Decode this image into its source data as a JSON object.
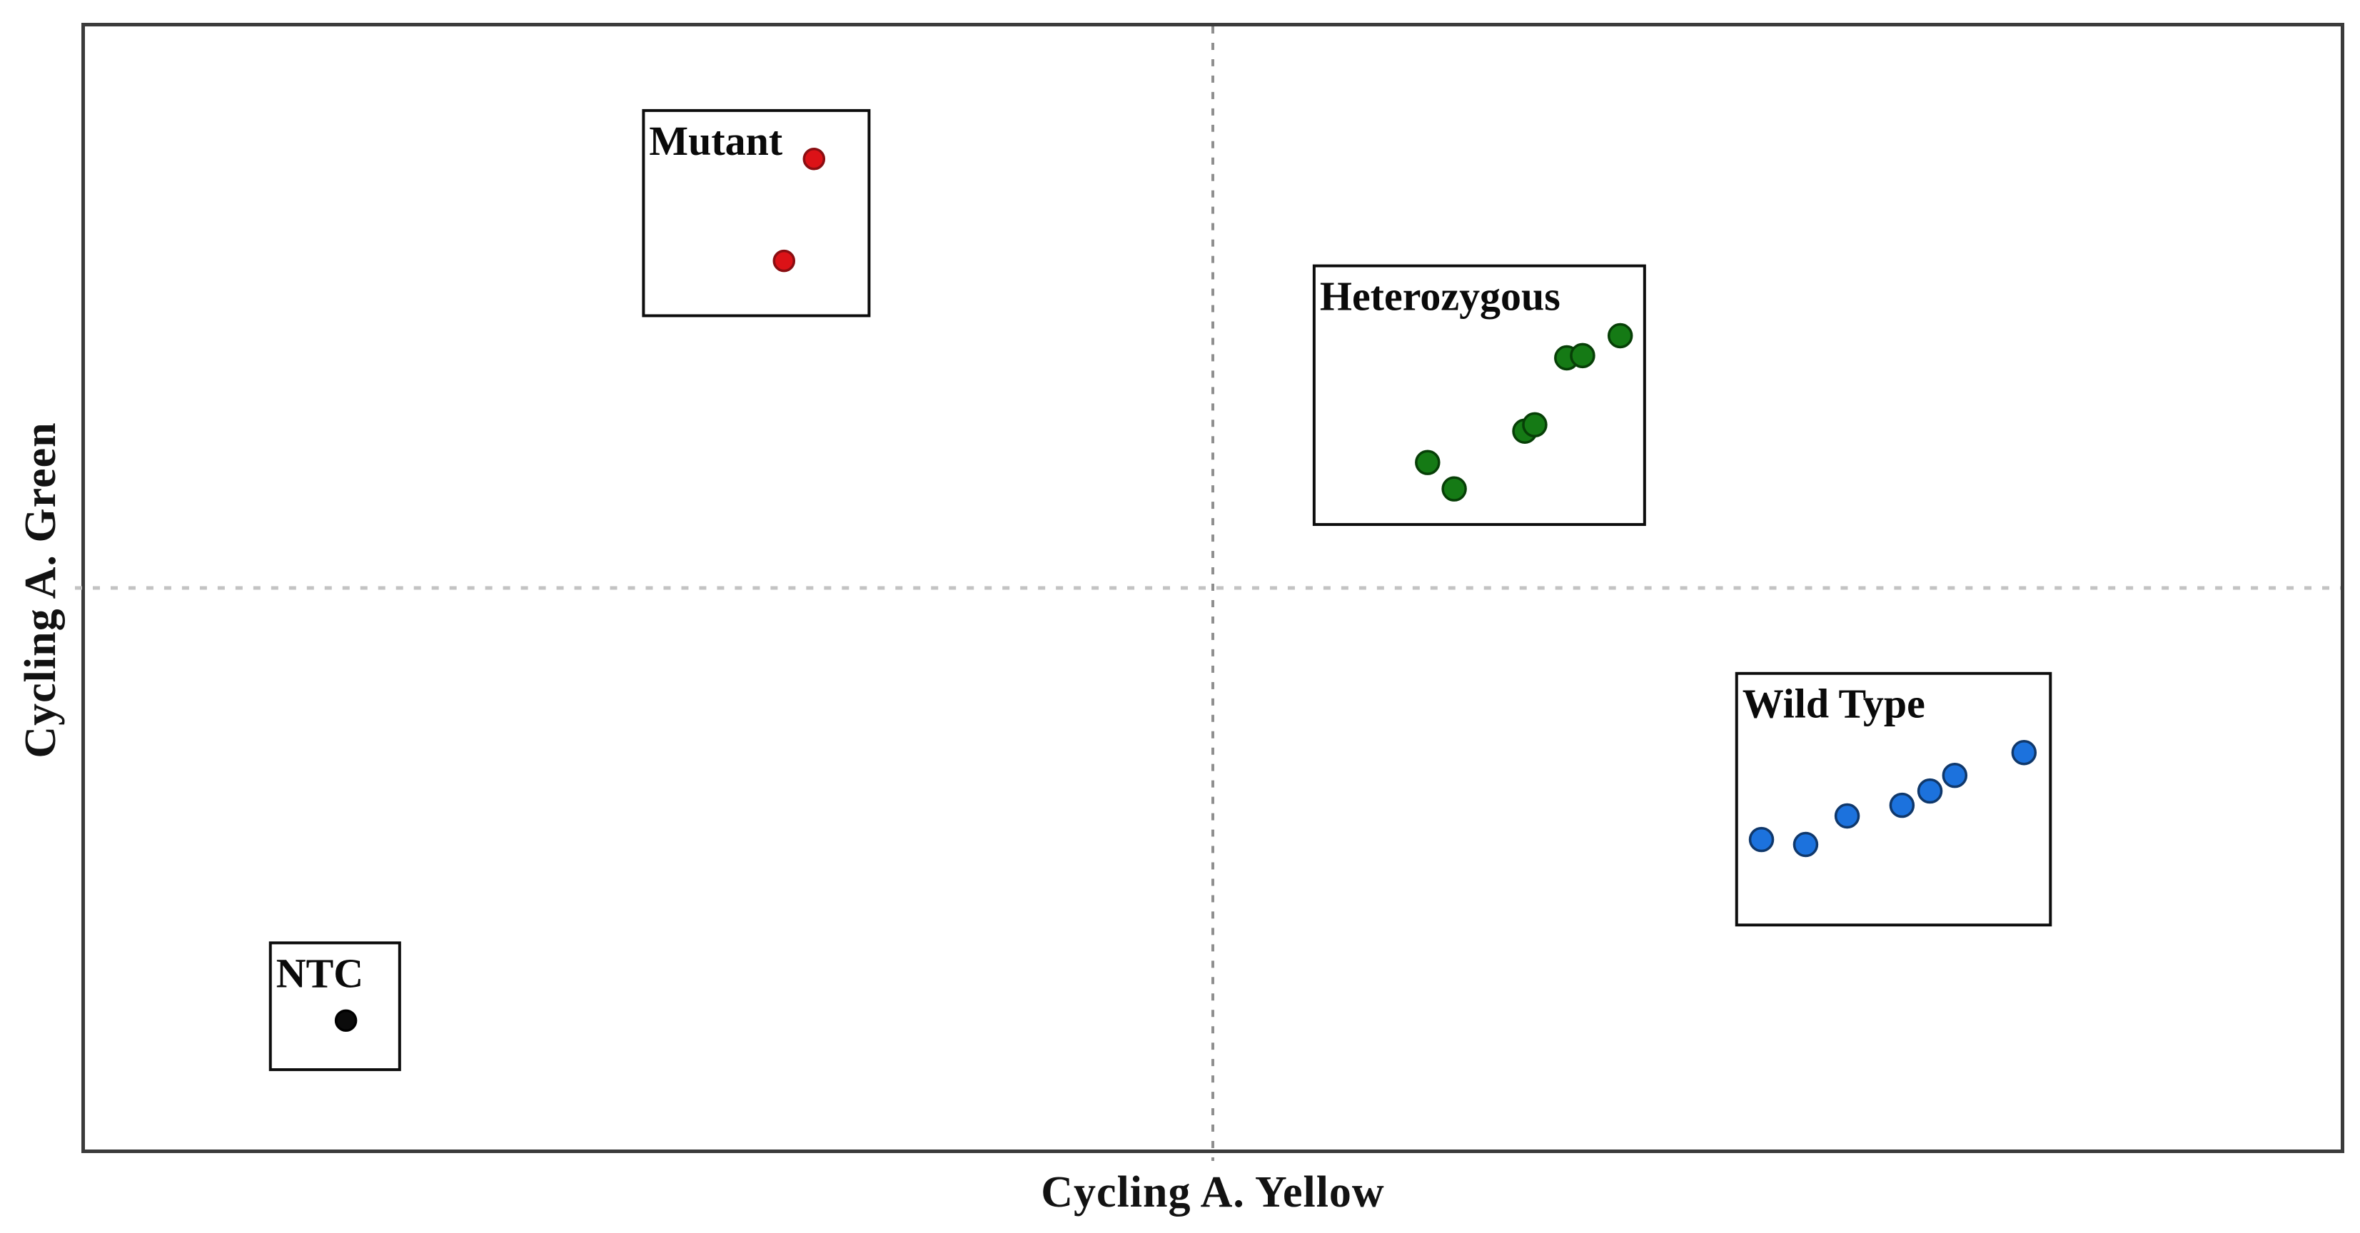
{
  "figure": {
    "background": "#ffffff",
    "plot_border_color": "#3b3b3b",
    "cluster_box_border_color": "#0d0d0d",
    "label_color": "#0a0a0a"
  },
  "chart_data": {
    "type": "scatter",
    "title": "",
    "xlabel": "Cycling A. Yellow",
    "ylabel": "Cycling A. Green",
    "x_ticks": [],
    "y_ticks": [],
    "axis_note": "axes carry no numeric ticks; point coordinates are fractions of the plot area (x from left 0-1, y from top 0-1)",
    "grid": "off",
    "threshold_lines": {
      "vertical_x": 0.5,
      "horizontal_y": 0.5,
      "style": "dotted",
      "vertical_color": "#8f8f8f",
      "horizontal_color": "#c3c3c3"
    },
    "legend_position": "labels inside cluster boxes",
    "series": [
      {
        "name": "Mutant",
        "marker_color": "#dc1217",
        "marker_edge": "#8a0e12",
        "marker_radius": 14,
        "box": {
          "x": 0.2476,
          "y": 0.0749,
          "w": 0.1,
          "h": 0.1827
        },
        "points": [
          {
            "x": 0.3232,
            "y": 0.118
          },
          {
            "x": 0.3099,
            "y": 0.2088
          }
        ]
      },
      {
        "name": "Heterozygous",
        "marker_color": "#157a15",
        "marker_edge": "#073f07",
        "marker_radius": 16,
        "box": {
          "x": 0.5449,
          "y": 0.2132,
          "w": 0.1465,
          "h": 0.2303
        },
        "points": [
          {
            "x": 0.5952,
            "y": 0.3883
          },
          {
            "x": 0.607,
            "y": 0.4118
          },
          {
            "x": 0.6383,
            "y": 0.3604
          },
          {
            "x": 0.6427,
            "y": 0.3547
          },
          {
            "x": 0.6569,
            "y": 0.2951
          },
          {
            "x": 0.6639,
            "y": 0.2931
          },
          {
            "x": 0.6806,
            "y": 0.2754
          }
        ]
      },
      {
        "name": "Wild Type",
        "marker_color": "#1c72dd",
        "marker_edge": "#10386b",
        "marker_radius": 16,
        "box": {
          "x": 0.7322,
          "y": 0.5761,
          "w": 0.1391,
          "h": 0.224
        },
        "points": [
          {
            "x": 0.7432,
            "y": 0.724
          },
          {
            "x": 0.7628,
            "y": 0.7284
          },
          {
            "x": 0.7812,
            "y": 0.703
          },
          {
            "x": 0.8055,
            "y": 0.6935
          },
          {
            "x": 0.8179,
            "y": 0.6808
          },
          {
            "x": 0.8289,
            "y": 0.6669
          },
          {
            "x": 0.8596,
            "y": 0.6466
          }
        ]
      },
      {
        "name": "NTC",
        "marker_color": "#0b0b0b",
        "marker_edge": "#000000",
        "marker_radius": 14,
        "box": {
          "x": 0.0822,
          "y": 0.816,
          "w": 0.0573,
          "h": 0.1129
        },
        "points": [
          {
            "x": 0.1157,
            "y": 0.8852
          }
        ]
      }
    ]
  }
}
